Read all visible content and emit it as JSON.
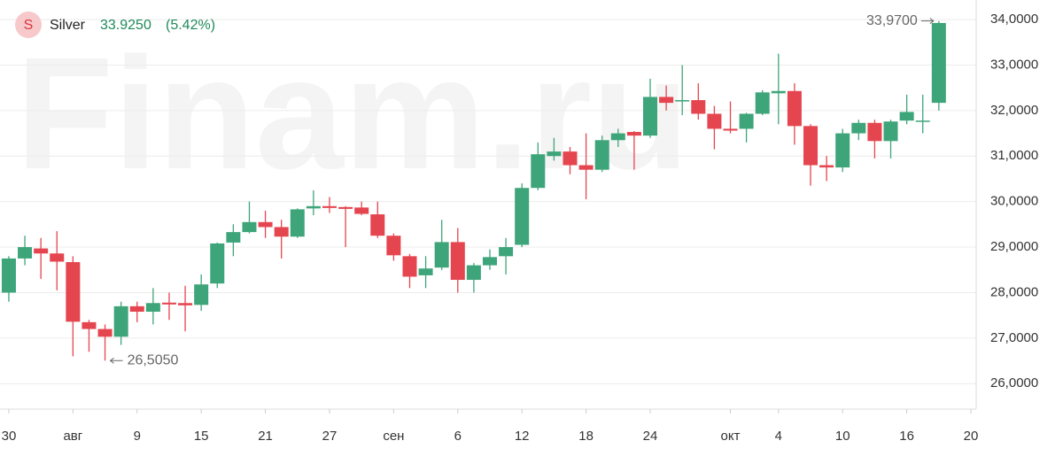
{
  "chart_data": {
    "type": "candlestick",
    "watermark": "Finam.ru",
    "icon": "S",
    "title": "Silver",
    "price": "33.9250",
    "change": "(5.42%)",
    "annotations": {
      "max": "33,9700",
      "min": "26,5050"
    },
    "up_color": "#3ea57a",
    "down_color": "#e5454f",
    "x": [
      0,
      1,
      2,
      3,
      4,
      5,
      6,
      7,
      8,
      9,
      10,
      11,
      12,
      13,
      14,
      15,
      16,
      17,
      18,
      19,
      20,
      21,
      22,
      23,
      24,
      25,
      26,
      27,
      28,
      29,
      30,
      31,
      32,
      33,
      34,
      35,
      36,
      37,
      38,
      39,
      40,
      41,
      42,
      43,
      44,
      45,
      46,
      47,
      48,
      49,
      50,
      51,
      52,
      53,
      54,
      55,
      56,
      57,
      58
    ],
    "open": [
      28.0,
      28.75,
      28.97,
      28.86,
      28.67,
      27.35,
      27.2,
      27.03,
      27.7,
      27.58,
      27.78,
      27.77,
      27.73,
      28.2,
      29.1,
      29.33,
      29.55,
      29.44,
      29.23,
      29.85,
      29.9,
      29.88,
      29.87,
      29.72,
      29.25,
      28.8,
      28.38,
      28.55,
      29.11,
      28.28,
      28.6,
      28.8,
      29.05,
      30.3,
      31.0,
      31.1,
      30.8,
      30.7,
      31.35,
      31.53,
      31.45,
      32.3,
      32.2,
      32.23,
      31.93,
      31.6,
      31.6,
      31.93,
      32.38,
      32.43,
      31.66,
      30.8,
      30.75,
      31.5,
      31.73,
      31.33,
      31.78,
      31.76,
      32.17
    ],
    "high": [
      28.8,
      29.25,
      29.2,
      29.35,
      28.8,
      27.4,
      27.3,
      27.8,
      27.8,
      28.1,
      28.0,
      28.15,
      28.4,
      29.1,
      29.5,
      30.0,
      29.8,
      29.6,
      29.85,
      30.25,
      30.1,
      29.9,
      30.0,
      30.0,
      29.3,
      28.85,
      28.8,
      29.6,
      29.42,
      28.65,
      28.95,
      29.2,
      30.4,
      31.3,
      31.4,
      31.2,
      31.5,
      31.45,
      31.6,
      31.55,
      32.7,
      32.55,
      33.0,
      32.6,
      32.1,
      32.2,
      31.95,
      32.45,
      33.25,
      32.6,
      31.7,
      31.0,
      31.6,
      31.8,
      31.8,
      31.8,
      32.35,
      32.35,
      33.97
    ],
    "low": [
      27.8,
      28.6,
      28.3,
      28.05,
      26.6,
      26.7,
      26.505,
      26.85,
      27.35,
      27.3,
      27.4,
      27.15,
      27.6,
      28.1,
      28.8,
      29.3,
      29.2,
      28.75,
      29.2,
      29.7,
      29.75,
      29.0,
      29.7,
      29.2,
      28.7,
      28.1,
      28.1,
      28.5,
      28.0,
      28.0,
      28.5,
      28.4,
      29.0,
      30.25,
      30.9,
      30.6,
      30.05,
      30.65,
      31.2,
      30.7,
      31.4,
      32.0,
      31.9,
      31.8,
      31.15,
      31.5,
      31.3,
      31.9,
      31.7,
      31.25,
      30.35,
      30.45,
      30.65,
      31.35,
      30.95,
      30.95,
      31.7,
      31.5,
      32.0
    ],
    "close": [
      28.75,
      29.0,
      28.86,
      28.68,
      27.36,
      27.2,
      27.03,
      27.7,
      27.58,
      27.77,
      27.74,
      27.72,
      28.18,
      29.08,
      29.33,
      29.55,
      29.44,
      29.23,
      29.83,
      29.9,
      29.86,
      29.84,
      29.73,
      29.25,
      28.82,
      28.35,
      28.53,
      29.11,
      28.28,
      28.6,
      28.78,
      29.0,
      30.3,
      31.04,
      31.1,
      30.8,
      30.7,
      31.35,
      31.5,
      31.45,
      32.3,
      32.17,
      32.23,
      31.93,
      31.6,
      31.56,
      31.93,
      32.4,
      32.43,
      31.66,
      30.8,
      30.75,
      31.5,
      31.73,
      31.33,
      31.76,
      31.97,
      31.78,
      33.925
    ],
    "xlim": [
      -0.55,
      60.33
    ],
    "xticks": [
      {
        "value": 0,
        "label": "30"
      },
      {
        "value": 4,
        "label": "авг"
      },
      {
        "value": 8,
        "label": "9"
      },
      {
        "value": 12,
        "label": "15"
      },
      {
        "value": 16,
        "label": "21"
      },
      {
        "value": 20,
        "label": "27"
      },
      {
        "value": 24,
        "label": "сен"
      },
      {
        "value": 28,
        "label": "6"
      },
      {
        "value": 32,
        "label": "12"
      },
      {
        "value": 36,
        "label": "18"
      },
      {
        "value": 40,
        "label": "24"
      },
      {
        "value": 45,
        "label": "окт"
      },
      {
        "value": 48,
        "label": "4"
      },
      {
        "value": 52,
        "label": "10"
      },
      {
        "value": 56,
        "label": "16"
      },
      {
        "value": 60,
        "label": "20"
      }
    ],
    "ylim": [
      25.44,
      34.43
    ],
    "yticks": [
      {
        "value": 26,
        "label": "26,0000"
      },
      {
        "value": 27,
        "label": "27,0000"
      },
      {
        "value": 28,
        "label": "28,0000"
      },
      {
        "value": 29,
        "label": "29,0000"
      },
      {
        "value": 30,
        "label": "30,0000"
      },
      {
        "value": 31,
        "label": "31,0000"
      },
      {
        "value": 32,
        "label": "32,0000"
      },
      {
        "value": 33,
        "label": "33,0000"
      },
      {
        "value": 34,
        "label": "34,0000"
      }
    ],
    "grid": true
  }
}
